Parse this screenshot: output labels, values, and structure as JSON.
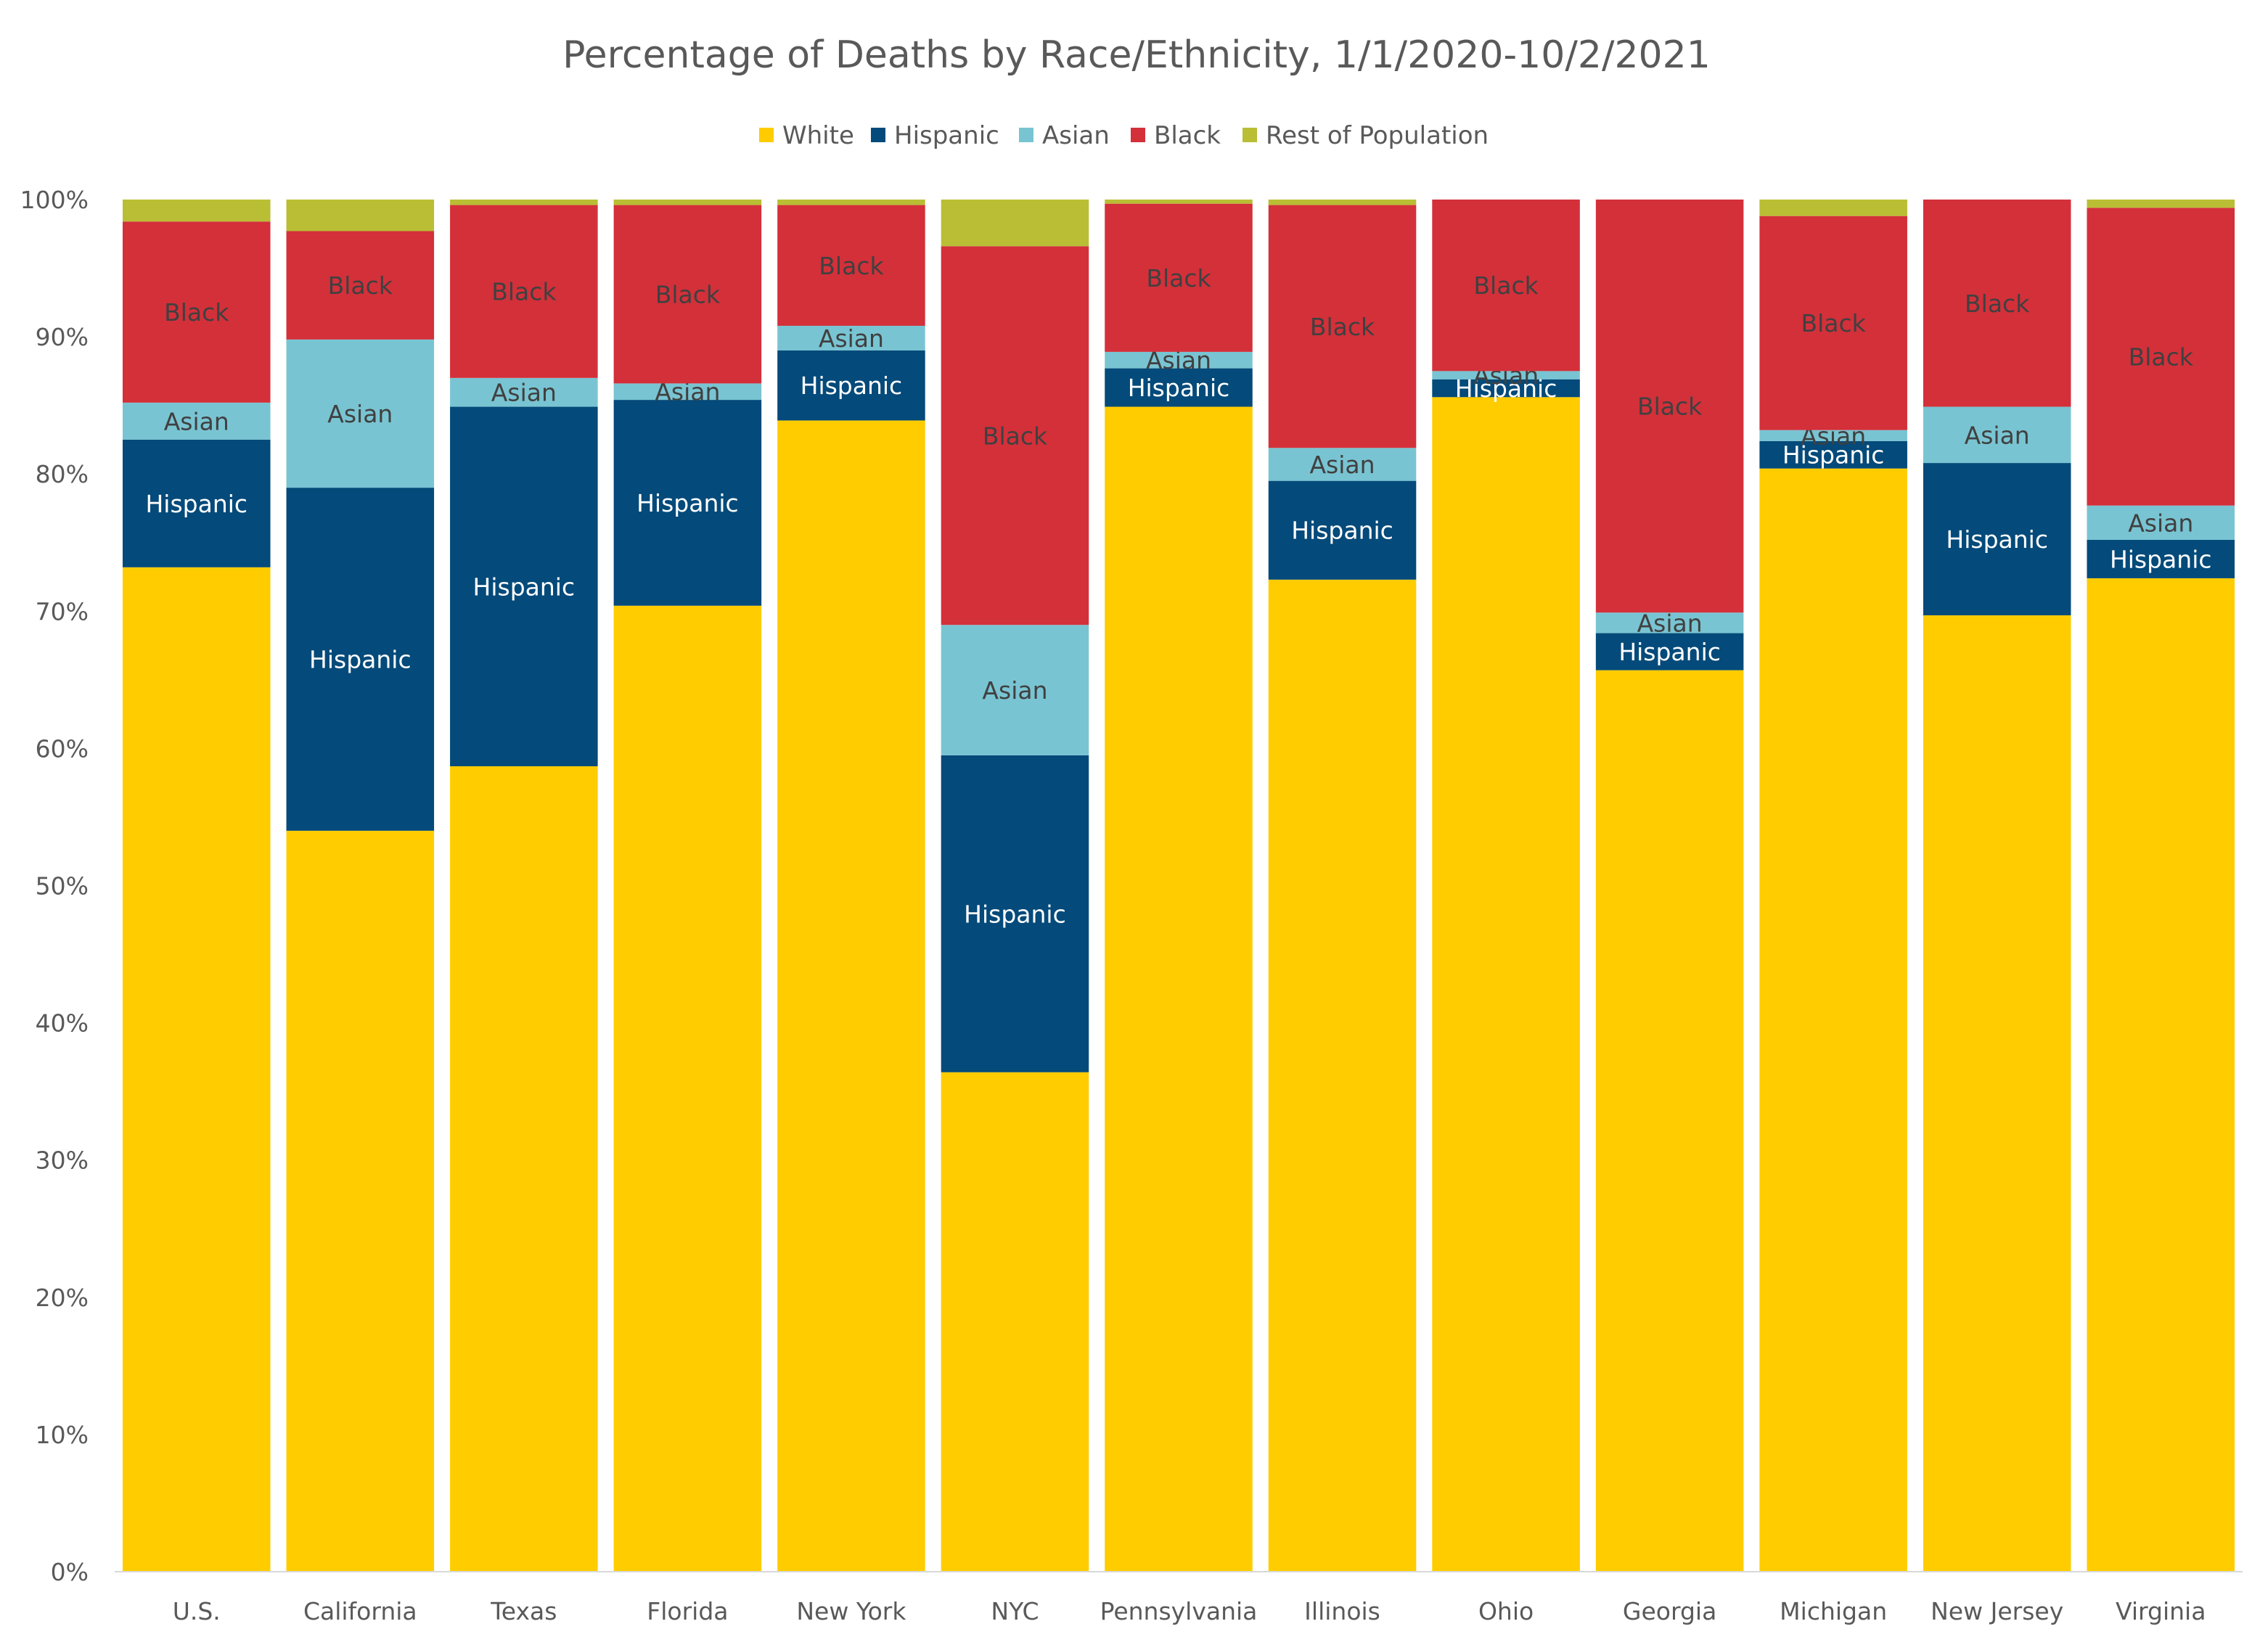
{
  "chart_data": {
    "type": "bar",
    "stacked": true,
    "title": "Percentage of Deaths by Race/Ethnicity, 1/1/2020-10/2/2021",
    "legend_position": "top",
    "grid": false,
    "ylim": [
      0,
      100
    ],
    "y_ticks": [
      "0%",
      "10%",
      "20%",
      "30%",
      "40%",
      "50%",
      "60%",
      "70%",
      "80%",
      "90%",
      "100%"
    ],
    "categories": [
      "U.S.",
      "California",
      "Texas",
      "Florida",
      "New York",
      "NYC",
      "Pennsylvania",
      "Illinois",
      "Ohio",
      "Georgia",
      "Michigan",
      "New Jersey",
      "Virginia"
    ],
    "series": [
      {
        "name": "White",
        "label": "",
        "color": "#FFCC00",
        "label_color": "#404040",
        "values": [
          73.2,
          54.0,
          58.7,
          70.4,
          83.9,
          36.4,
          84.9,
          72.3,
          85.6,
          65.7,
          80.4,
          69.7,
          72.4
        ]
      },
      {
        "name": "Hispanic",
        "label": "Hispanic",
        "color": "#044A7A",
        "label_color": "#FFFFFF",
        "values": [
          9.3,
          25.0,
          26.2,
          15.0,
          5.1,
          23.1,
          2.8,
          7.2,
          1.3,
          2.7,
          2.0,
          11.1,
          2.8
        ]
      },
      {
        "name": "Asian",
        "label": "Asian",
        "color": "#79C4D2",
        "label_color": "#404040",
        "values": [
          2.7,
          10.8,
          2.1,
          1.2,
          1.8,
          9.5,
          1.2,
          2.4,
          0.6,
          1.5,
          0.8,
          4.1,
          2.5
        ]
      },
      {
        "name": "Black",
        "label": "Black",
        "color": "#D3303A",
        "label_color": "#404040",
        "values": [
          13.2,
          7.9,
          12.6,
          13.0,
          8.8,
          27.6,
          10.8,
          17.7,
          12.5,
          30.1,
          15.6,
          15.1,
          21.7
        ]
      },
      {
        "name": "Rest of Population",
        "label": "",
        "color": "#B9BE34",
        "label_color": "#404040",
        "values": [
          1.6,
          2.3,
          0.4,
          0.4,
          0.4,
          3.4,
          0.3,
          0.4,
          0.0,
          0.0,
          1.2,
          0.0,
          0.6
        ]
      }
    ]
  }
}
